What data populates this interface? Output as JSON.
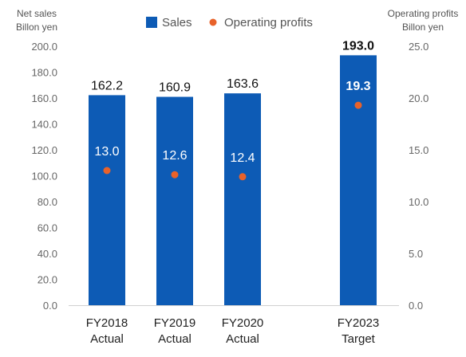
{
  "chart_data": {
    "type": "bar",
    "categories": [
      [
        "FY2018",
        "Actual"
      ],
      [
        "FY2019",
        "Actual"
      ],
      [
        "FY2020",
        "Actual"
      ],
      [
        "FY2023",
        "Target"
      ]
    ],
    "series": [
      {
        "name": "Sales",
        "kind": "bar",
        "axis": "left",
        "color": "#0d5bb5",
        "values": [
          162.2,
          160.9,
          163.6,
          193.0
        ],
        "labels": [
          "162.2",
          "160.9",
          "163.6",
          "193.0"
        ]
      },
      {
        "name": "Operating profits",
        "kind": "scatter",
        "axis": "right",
        "color": "#e8622a",
        "values": [
          13.0,
          12.6,
          12.4,
          19.3
        ],
        "labels": [
          "13.0",
          "12.6",
          "12.4",
          "19.3"
        ]
      }
    ],
    "left_axis": {
      "title_lines": [
        "Net sales",
        "Billon yen"
      ],
      "range": [
        0,
        200
      ],
      "ticks": [
        "0.0",
        "20.0",
        "40.0",
        "60.0",
        "80.0",
        "100.0",
        "120.0",
        "140.0",
        "160.0",
        "180.0",
        "200.0"
      ]
    },
    "right_axis": {
      "title_lines": [
        "Operating profits",
        "Billon yen"
      ],
      "range": [
        0,
        25
      ],
      "ticks": [
        "0.0",
        "5.0",
        "10.0",
        "15.0",
        "20.0",
        "25.0"
      ]
    },
    "legend": "top-center",
    "grid": false,
    "emphasized_category": 3
  }
}
